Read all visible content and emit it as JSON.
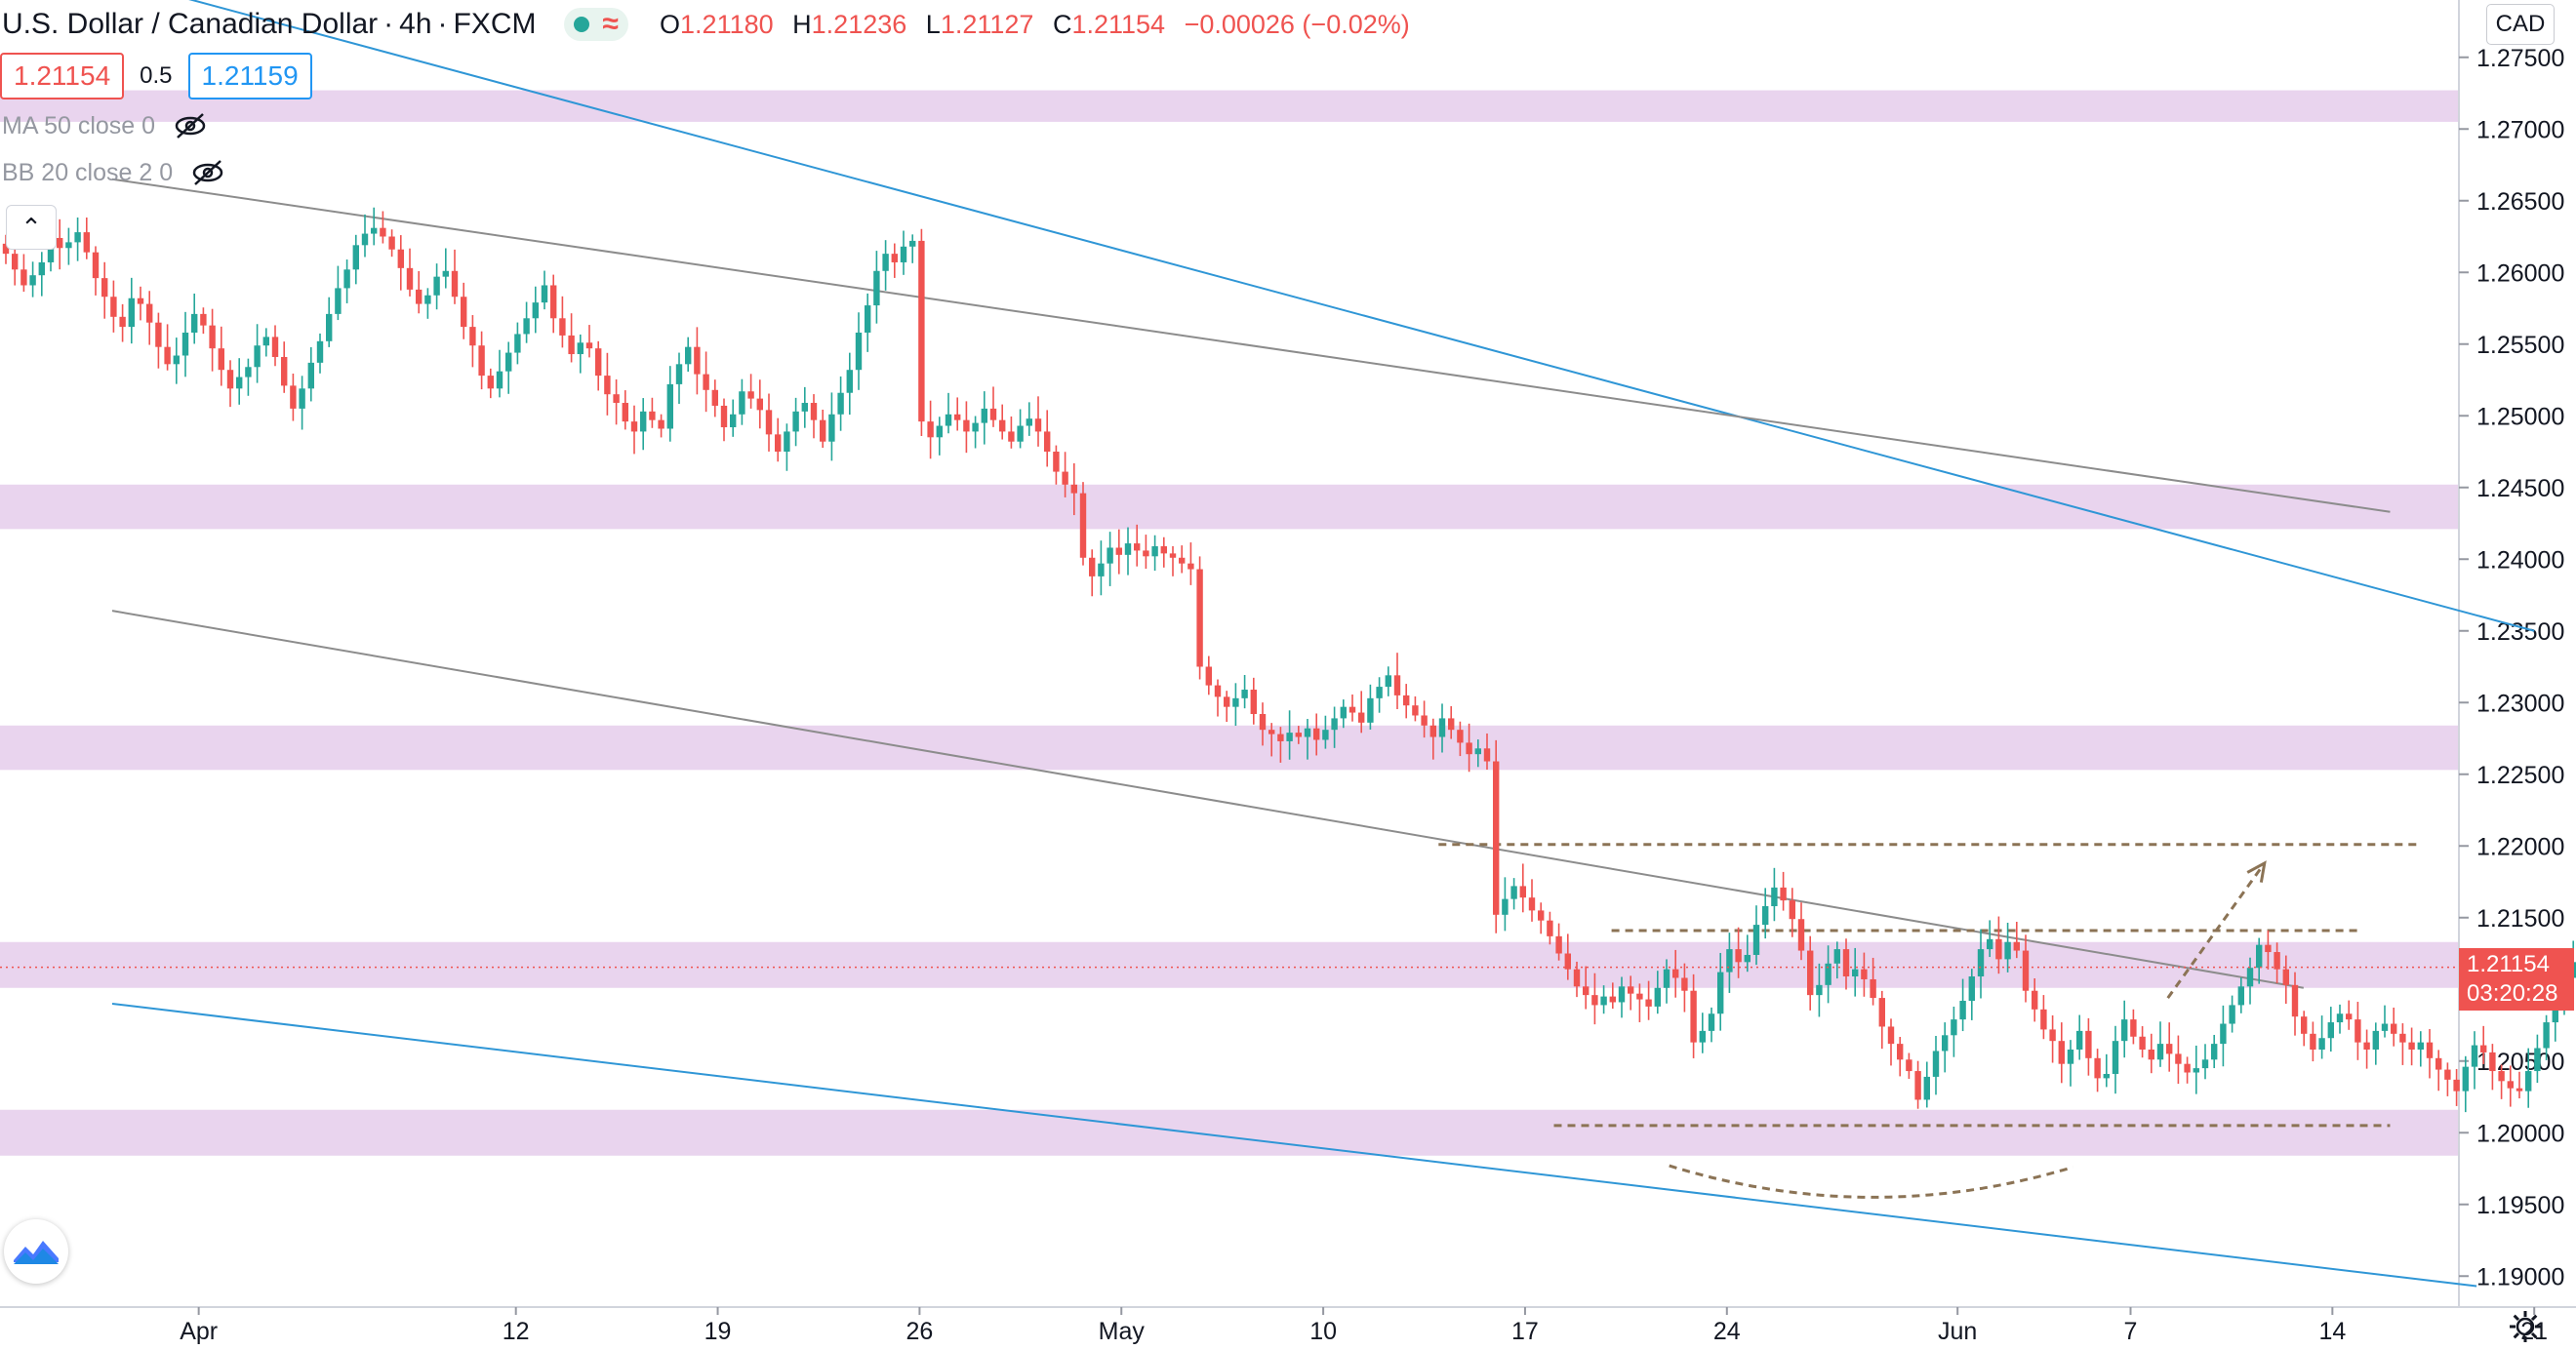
{
  "legend": {
    "symbol": "U.S. Dollar / Canadian Dollar",
    "interval": "4h",
    "exchange": "FXCM",
    "sep": "·",
    "open_k": "O",
    "open_v": "1.21180",
    "high_k": "H",
    "high_v": "1.21236",
    "low_k": "L",
    "low_v": "1.21127",
    "close_k": "C",
    "close_v": "1.21154",
    "change": "−0.00026 (−0.02%)"
  },
  "quote": {
    "bid": "1.21154",
    "spread": "0.5",
    "ask": "1.21159"
  },
  "indicators": {
    "ma": "MA 50 close 0",
    "bb": "BB 20 close 2 0"
  },
  "currency_selector": "CAD",
  "last_price_label": {
    "price": "1.21154",
    "countdown": "03:20:28"
  },
  "colors": {
    "up": "#26a69a",
    "down": "#ef5350",
    "zone": "#e1c5e8",
    "channel": "#2f96d6",
    "trendline": "#8c8c8c",
    "annotation": "#8b7355"
  },
  "chart_data": {
    "type": "candlestick",
    "title": "",
    "ylim": [
      1.1875,
      1.2775
    ],
    "yticks": [
      "1.27500",
      "1.27000",
      "1.26500",
      "1.26000",
      "1.25500",
      "1.25000",
      "1.24500",
      "1.24000",
      "1.23500",
      "1.23000",
      "1.22500",
      "1.22000",
      "1.21500",
      "1.21000",
      "1.20500",
      "1.20000",
      "1.19500",
      "1.19000"
    ],
    "xticks": [
      "Apr",
      "12",
      "19",
      "26",
      "May",
      "10",
      "17",
      "24",
      "Jun",
      "7",
      "14",
      "21"
    ],
    "xlim": [
      "2021-03-29",
      "2021-06-21"
    ],
    "price_line": 1.21154,
    "zones": [
      {
        "from": 1.2705,
        "to": 1.2727
      },
      {
        "from": 1.2421,
        "to": 1.2452
      },
      {
        "from": 1.2253,
        "to": 1.2284
      },
      {
        "from": 1.2101,
        "to": 1.2133
      },
      {
        "from": 1.1984,
        "to": 1.2016
      }
    ],
    "trendlines": [
      {
        "style": "channel",
        "from": [
          "2021-03-29",
          1.2805
        ],
        "to": [
          "2021-06-21",
          1.235
        ]
      },
      {
        "style": "channel",
        "from": [
          "2021-03-29",
          1.209
        ],
        "to": [
          "2021-06-19",
          1.1893
        ]
      },
      {
        "style": "gray",
        "from": [
          "2021-03-29",
          1.2665
        ],
        "to": [
          "2021-06-16",
          1.2433
        ]
      },
      {
        "style": "gray",
        "from": [
          "2021-03-29",
          1.2364
        ],
        "to": [
          "2021-06-13",
          1.2101
        ]
      }
    ],
    "levels": [
      {
        "value": 1.2201,
        "from": "2021-05-14",
        "to": "2021-06-17"
      },
      {
        "value": 1.2141,
        "from": "2021-05-20",
        "to": "2021-06-15"
      },
      {
        "value": 1.2005,
        "from": "2021-05-18",
        "to": "2021-06-16"
      }
    ],
    "projection_arrow": {
      "from": [
        "2021-06-11",
        1.2094
      ],
      "to": [
        "2021-06-13",
        1.2188
      ]
    },
    "arc": {
      "from": [
        "2021-05-22",
        1.1977
      ],
      "to": [
        "2021-06-05",
        1.1976
      ],
      "low": 1.1955
    },
    "closes": [
      1.2613,
      1.2602,
      1.2591,
      1.2598,
      1.2607,
      1.2624,
      1.2617,
      1.2621,
      1.2628,
      1.2614,
      1.2596,
      1.2583,
      1.2569,
      1.2562,
      1.2582,
      1.2578,
      1.2565,
      1.2548,
      1.2536,
      1.2542,
      1.2558,
      1.2571,
      1.2563,
      1.2547,
      1.2532,
      1.2519,
      1.2527,
      1.2534,
      1.2549,
      1.2555,
      1.2541,
      1.2521,
      1.2505,
      1.2519,
      1.2537,
      1.2552,
      1.2571,
      1.2589,
      1.2602,
      1.2619,
      1.2627,
      1.2631,
      1.2625,
      1.2616,
      1.2603,
      1.2588,
      1.2578,
      1.2584,
      1.2597,
      1.2601,
      1.2583,
      1.2562,
      1.2549,
      1.2528,
      1.2519,
      1.2531,
      1.2544,
      1.2557,
      1.2568,
      1.2579,
      1.2591,
      1.2568,
      1.2556,
      1.2543,
      1.2551,
      1.2547,
      1.2528,
      1.2515,
      1.2509,
      1.2496,
      1.2489,
      1.2503,
      1.2497,
      1.2491,
      1.2522,
      1.2536,
      1.2548,
      1.2529,
      1.2518,
      1.2507,
      1.2492,
      1.2501,
      1.2517,
      1.2512,
      1.2504,
      1.2487,
      1.2475,
      1.2489,
      1.2503,
      1.2509,
      1.2497,
      1.2482,
      1.2501,
      1.2516,
      1.2532,
      1.2558,
      1.2577,
      1.2601,
      1.2613,
      1.2607,
      1.2618,
      1.2622,
      1.2496,
      1.2485,
      1.2493,
      1.2501,
      1.2497,
      1.2489,
      1.2495,
      1.2505,
      1.2497,
      1.2489,
      1.2482,
      1.2493,
      1.2498,
      1.2489,
      1.2475,
      1.2461,
      1.2452,
      1.2446,
      1.2401,
      1.2388,
      1.2397,
      1.2408,
      1.2403,
      1.2411,
      1.2406,
      1.2402,
      1.2409,
      1.2404,
      1.2401,
      1.2397,
      1.2393,
      1.2325,
      1.2312,
      1.2304,
      1.2297,
      1.2303,
      1.2309,
      1.2292,
      1.2281,
      1.2278,
      1.2273,
      1.2279,
      1.2276,
      1.2282,
      1.2274,
      1.2281,
      1.2289,
      1.2297,
      1.2293,
      1.2286,
      1.2303,
      1.2311,
      1.2319,
      1.2305,
      1.2298,
      1.2291,
      1.2284,
      1.2276,
      1.2289,
      1.2281,
      1.2272,
      1.2264,
      1.2268,
      1.2259,
      1.2152,
      1.2163,
      1.2172,
      1.2164,
      1.2155,
      1.2148,
      1.2137,
      1.2125,
      1.2114,
      1.2102,
      1.2096,
      1.2089,
      1.2095,
      1.2091,
      1.2102,
      1.2097,
      1.2093,
      1.2088,
      1.2101,
      1.2114,
      1.2108,
      1.2099,
      1.2063,
      1.2071,
      1.2083,
      1.2112,
      1.2128,
      1.2119,
      1.2124,
      1.2145,
      1.2158,
      1.2171,
      1.2162,
      1.2149,
      1.2127,
      1.2096,
      1.2103,
      1.2118,
      1.2128,
      1.2109,
      1.2114,
      1.2107,
      1.2094,
      1.2074,
      1.2062,
      1.2051,
      1.2043,
      1.2023,
      1.2039,
      1.2057,
      1.2068,
      1.2079,
      1.2092,
      1.2109,
      1.2128,
      1.2135,
      1.2121,
      1.2133,
      1.2127,
      1.2099,
      1.2086,
      1.2072,
      1.2064,
      1.2048,
      1.2058,
      1.2071,
      1.2052,
      1.2038,
      1.2041,
      1.2064,
      1.2079,
      1.2067,
      1.2058,
      1.2051,
      1.2062,
      1.2055,
      1.2048,
      1.2042,
      1.2045,
      1.2051,
      1.2062,
      1.2076,
      1.2089,
      1.2102,
      1.2115,
      1.2131,
      1.2126,
      1.2114,
      1.2103,
      1.2081,
      1.2069,
      1.2058,
      1.2066,
      1.2077,
      1.2083,
      1.2079,
      1.2063,
      1.2058,
      1.2071,
      1.2076,
      1.2069,
      1.2063,
      1.2058,
      1.2063,
      1.2052,
      1.2044,
      1.2037,
      1.2029,
      1.2046,
      1.2061,
      1.2056,
      1.2043,
      1.2036,
      1.2031,
      1.2029,
      1.2043,
      1.2059,
      1.2077,
      1.2094,
      1.2108,
      1.2119,
      1.2125,
      1.2132,
      1.2109,
      1.2087,
      1.2076,
      1.2068,
      1.2073,
      1.2081,
      1.2094,
      1.2085,
      1.2067,
      1.2063,
      1.2069,
      1.2074,
      1.2079,
      1.2086,
      1.2098,
      1.2105,
      1.2097,
      1.2103,
      1.2095,
      1.2081,
      1.2098,
      1.2108,
      1.2112,
      1.2118,
      1.2115
    ],
    "rally_start_index": 97,
    "start_open": 1.262
  }
}
